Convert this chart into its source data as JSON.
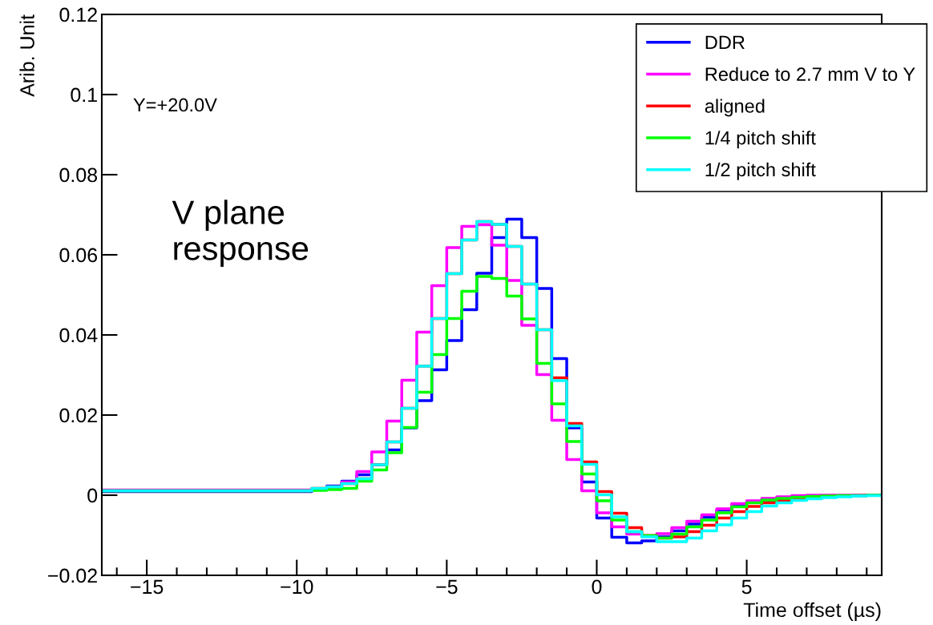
{
  "chart_data": {
    "type": "histogram",
    "xlabel": "Time offset (µs)",
    "ylabel": "Arib. Unit",
    "annotations": [
      "Y=+20.0V",
      "V plane\nresponse"
    ],
    "bins": [
      -16.5,
      -9.5,
      -9,
      -8.5,
      -8,
      -7.5,
      -7,
      -6.5,
      -6,
      -5.5,
      -5,
      -4.5,
      -4,
      -3.5,
      -3,
      -2.5,
      -2,
      -1.5,
      -1,
      -0.5,
      0,
      0.5,
      1,
      1.5,
      2,
      2.5,
      3,
      3.5,
      4,
      4.5,
      5,
      5.5,
      6,
      6.5,
      7,
      7.5,
      8,
      8.5,
      9,
      9.5
    ],
    "series": [
      {
        "name": "DDR",
        "color": "#0000ff",
        "values": [
          0.0009,
          0.0015,
          0.0023,
          0.0035,
          0.0051,
          0.0076,
          0.0113,
          0.0168,
          0.0236,
          0.0313,
          0.0386,
          0.0463,
          0.0554,
          0.0643,
          0.0689,
          0.0643,
          0.0516,
          0.0341,
          0.0168,
          0.0033,
          -0.0057,
          -0.0105,
          -0.0119,
          -0.0114,
          -0.0104,
          -0.0089,
          -0.0072,
          -0.0055,
          -0.0037,
          -0.0026,
          -0.0017,
          -0.0012,
          -0.0007,
          -0.0005,
          -0.0004,
          -0.0003,
          -0.0002,
          -0.0001,
          0
        ]
      },
      {
        "name": "Reduce to 2.7 mm V to Y",
        "color": "#ff00ff",
        "values": [
          0.0013,
          0.0016,
          0.002,
          0.0033,
          0.0059,
          0.0108,
          0.0185,
          0.0287,
          0.0407,
          0.0523,
          0.0618,
          0.0671,
          0.0675,
          0.0624,
          0.0536,
          0.0424,
          0.0301,
          0.0187,
          0.0089,
          0.0011,
          -0.0044,
          -0.0079,
          -0.0097,
          -0.0101,
          -0.0096,
          -0.0081,
          -0.0065,
          -0.0049,
          -0.0034,
          -0.0021,
          -0.0014,
          -0.0008,
          -0.0004,
          -0.0001,
          0,
          0,
          0,
          0,
          0
        ]
      },
      {
        "name": "aligned",
        "color": "#ff0000",
        "values": [
          0.0011,
          0.0017,
          0.0021,
          0.0029,
          0.0041,
          0.0076,
          0.0133,
          0.0217,
          0.0322,
          0.0441,
          0.0553,
          0.0637,
          0.0683,
          0.0676,
          0.0621,
          0.0527,
          0.0413,
          0.0293,
          0.0179,
          0.0083,
          0.0009,
          -0.0045,
          -0.0081,
          -0.0101,
          -0.0107,
          -0.0104,
          -0.0091,
          -0.0075,
          -0.0057,
          -0.0041,
          -0.0028,
          -0.0019,
          -0.0013,
          -0.0009,
          -0.0006,
          -0.0004,
          -0.0002,
          -0.0001,
          0
        ]
      },
      {
        "name": "1/4 pitch shift",
        "color": "#00ff00",
        "values": [
          0.0011,
          0.0012,
          0.0014,
          0.0017,
          0.0035,
          0.0063,
          0.0106,
          0.0169,
          0.0257,
          0.0351,
          0.0441,
          0.0509,
          0.0546,
          0.0541,
          0.0497,
          0.044,
          0.0329,
          0.0228,
          0.0134,
          0.0053,
          -0.0014,
          -0.0062,
          -0.0091,
          -0.0101,
          -0.0107,
          -0.0097,
          -0.0079,
          -0.0062,
          -0.0044,
          -0.0029,
          -0.0019,
          -0.0012,
          -0.0008,
          -0.0005,
          -0.0003,
          -0.0002,
          -0.0001,
          -0.0001,
          0
        ]
      },
      {
        "name": "1/2 pitch shift",
        "color": "#00ffff",
        "values": [
          0.0011,
          0.0017,
          0.0021,
          0.0029,
          0.0041,
          0.0076,
          0.0133,
          0.0217,
          0.0322,
          0.0441,
          0.0553,
          0.0637,
          0.0683,
          0.0676,
          0.0621,
          0.0527,
          0.0413,
          0.0286,
          0.0173,
          0.0077,
          0.0001,
          -0.0054,
          -0.0091,
          -0.0104,
          -0.0116,
          -0.0116,
          -0.0107,
          -0.0089,
          -0.0074,
          -0.0057,
          -0.0041,
          -0.0027,
          -0.0019,
          -0.0013,
          -0.0009,
          -0.0006,
          -0.0004,
          -0.0002,
          -0.0001
        ]
      }
    ],
    "xlim": [
      -16.5,
      9.5
    ],
    "ylim": [
      -0.02,
      0.12
    ],
    "xticks": [
      {
        "value": -15,
        "label": "−15"
      },
      {
        "value": -10,
        "label": "−10"
      },
      {
        "value": -5,
        "label": "−5"
      },
      0,
      5
    ],
    "yticks": [
      {
        "value": -0.02,
        "label": "−0.02"
      },
      0,
      0.02,
      0.04,
      0.06,
      0.08,
      0.1,
      0.12
    ],
    "legend": "top right",
    "grid": false
  }
}
